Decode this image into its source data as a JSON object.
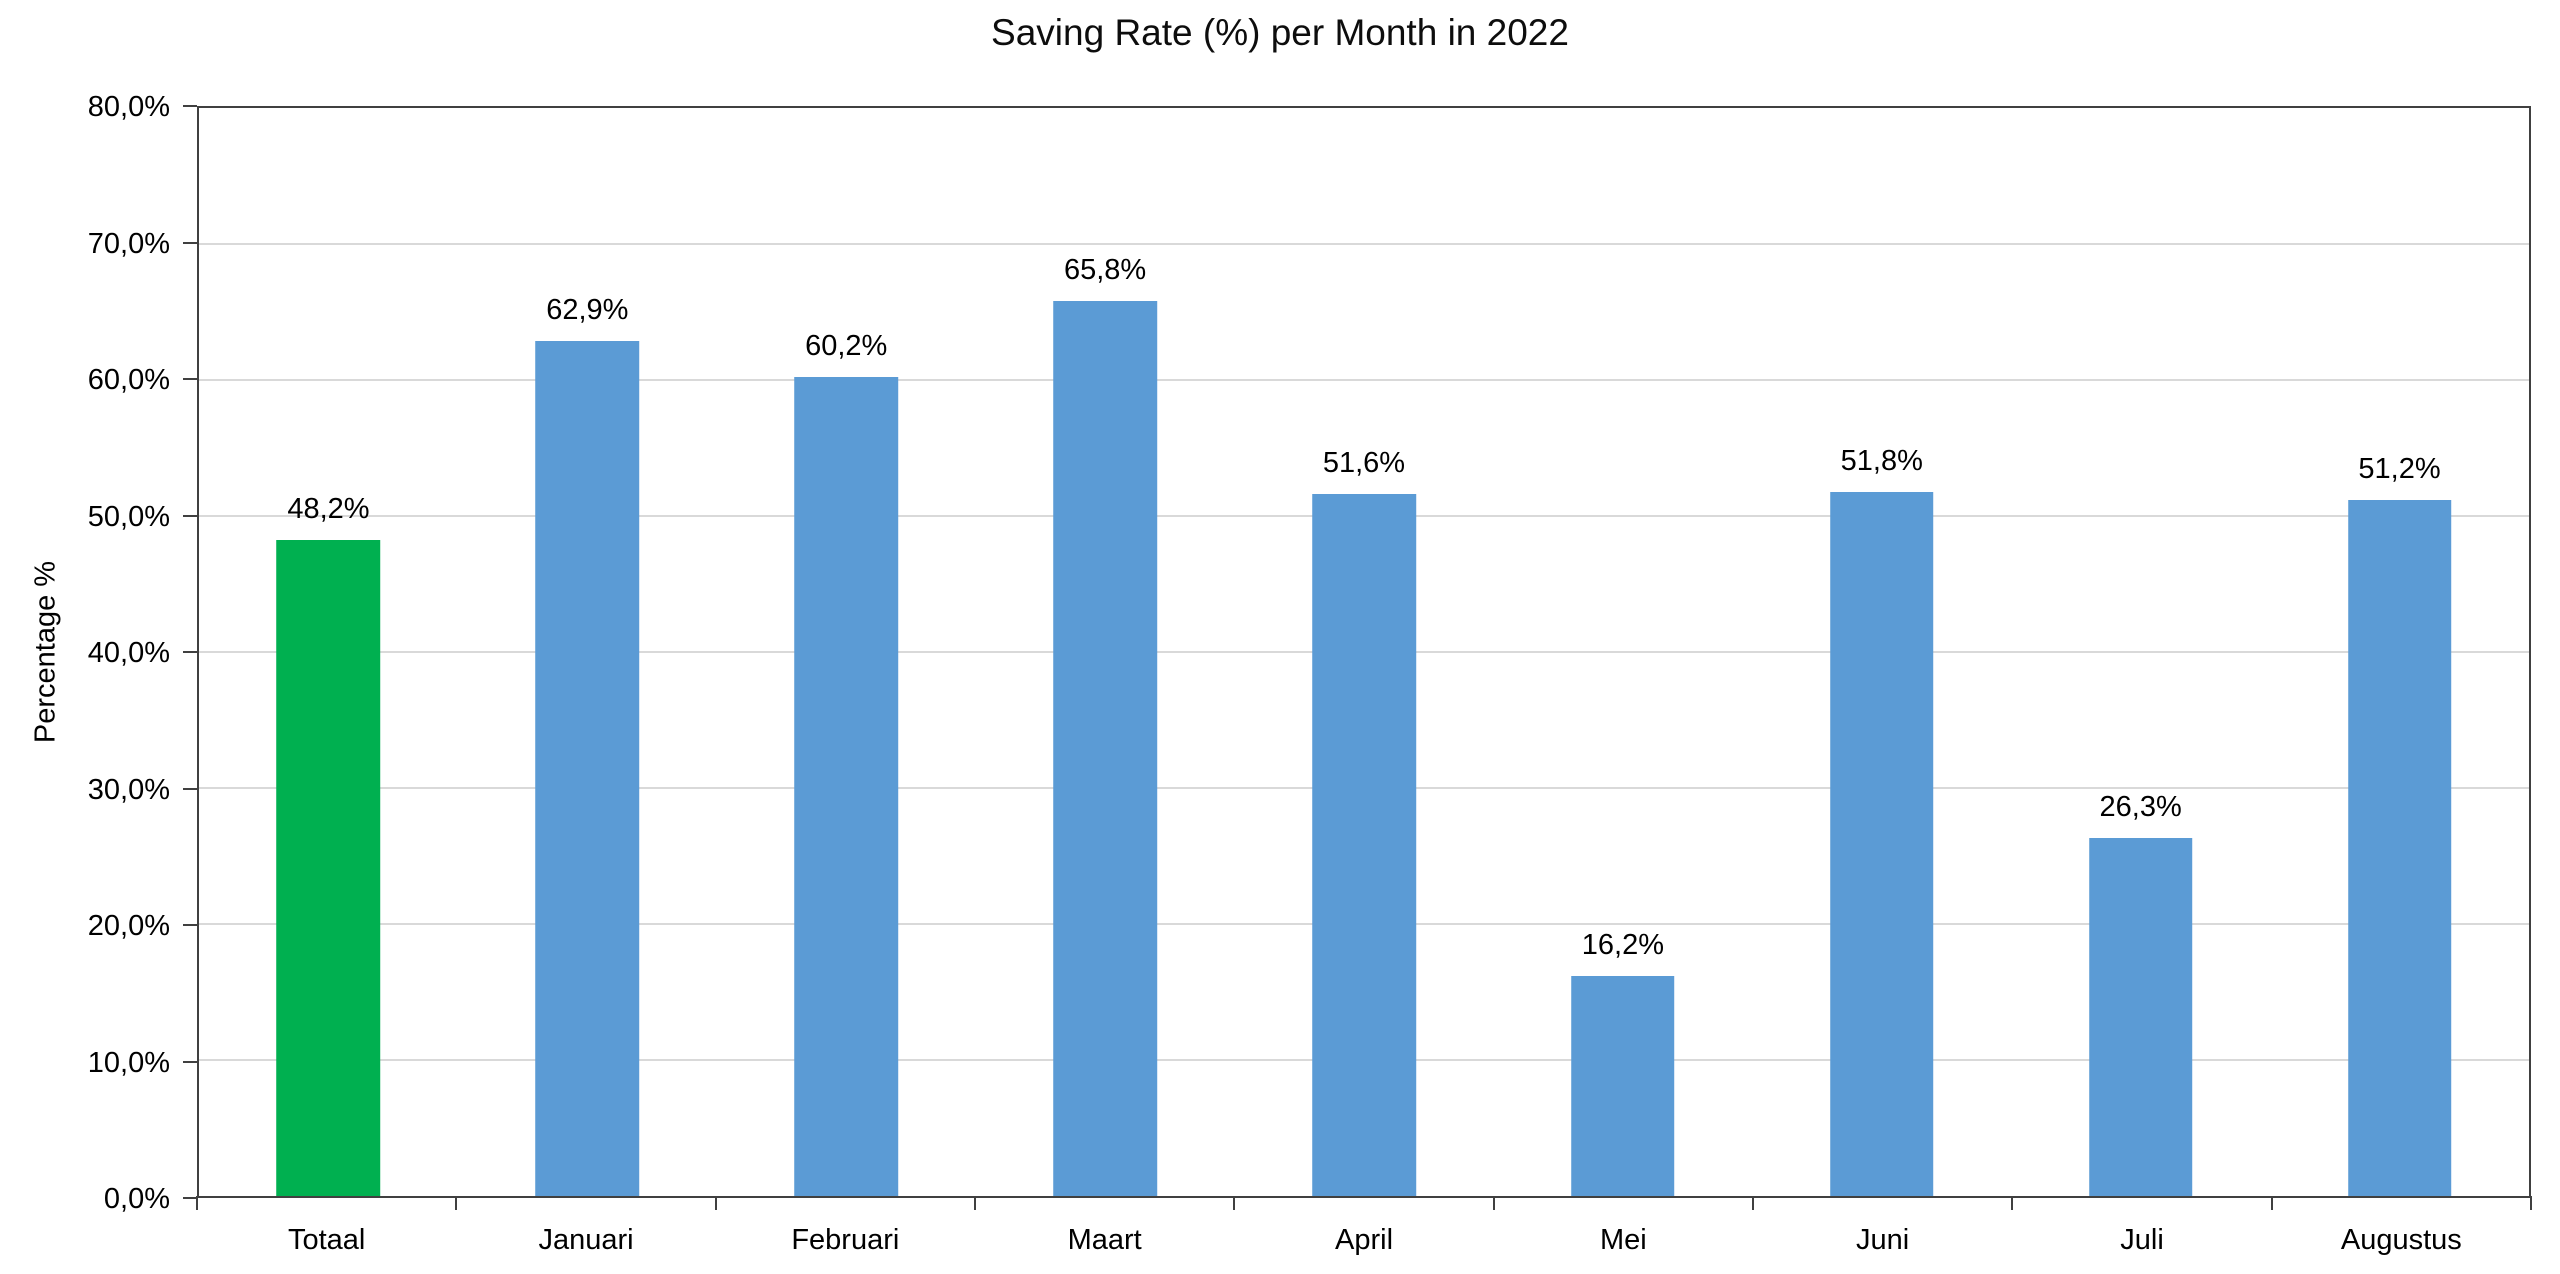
{
  "chart_data": {
    "type": "bar",
    "title": "Saving Rate (%) per Month in 2022",
    "xlabel": "",
    "ylabel": "Percentage %",
    "categories": [
      "Totaal",
      "Januari",
      "Februari",
      "Maart",
      "April",
      "Mei",
      "Juni",
      "Juli",
      "Augustus"
    ],
    "values": [
      48.2,
      62.9,
      60.2,
      65.8,
      51.6,
      16.2,
      51.8,
      26.3,
      51.2
    ],
    "data_labels": [
      "48,2%",
      "62,9%",
      "60,2%",
      "65,8%",
      "51,6%",
      "16,2%",
      "51,8%",
      "26,3%",
      "51,2%"
    ],
    "bar_colors": [
      "#00B050",
      "#5B9BD5",
      "#5B9BD5",
      "#5B9BD5",
      "#5B9BD5",
      "#5B9BD5",
      "#5B9BD5",
      "#5B9BD5",
      "#5B9BD5"
    ],
    "ylim": [
      0,
      80
    ],
    "ytick_step": 10,
    "ytick_labels": [
      "0,0%",
      "10,0%",
      "20,0%",
      "30,0%",
      "40,0%",
      "50,0%",
      "60,0%",
      "70,0%",
      "80,0%"
    ],
    "grid": true,
    "legend": "none",
    "colors": {
      "bar_default": "#5B9BD5",
      "bar_highlight": "#00B050",
      "gridline": "#D9D9D9",
      "axis": "#404040",
      "text": "#000000",
      "background": "#FFFFFF"
    }
  }
}
